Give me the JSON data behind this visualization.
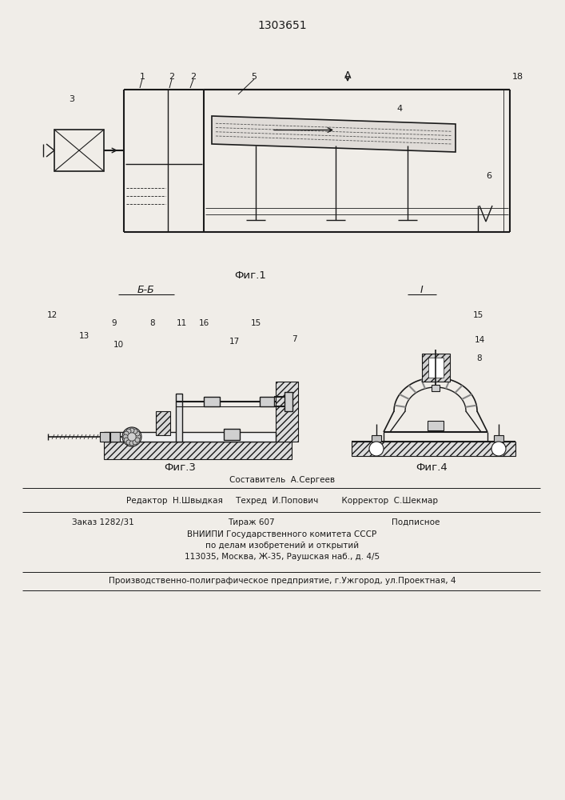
{
  "title": "1303651",
  "bg_color": "#f0ede8",
  "line_color": "#1a1a1a",
  "fig1_caption": "Фиг.1",
  "fig3_caption": "Фиг.3",
  "fig4_caption": "Фиг.4",
  "section_bb": "Б-Б",
  "section_i": "I"
}
